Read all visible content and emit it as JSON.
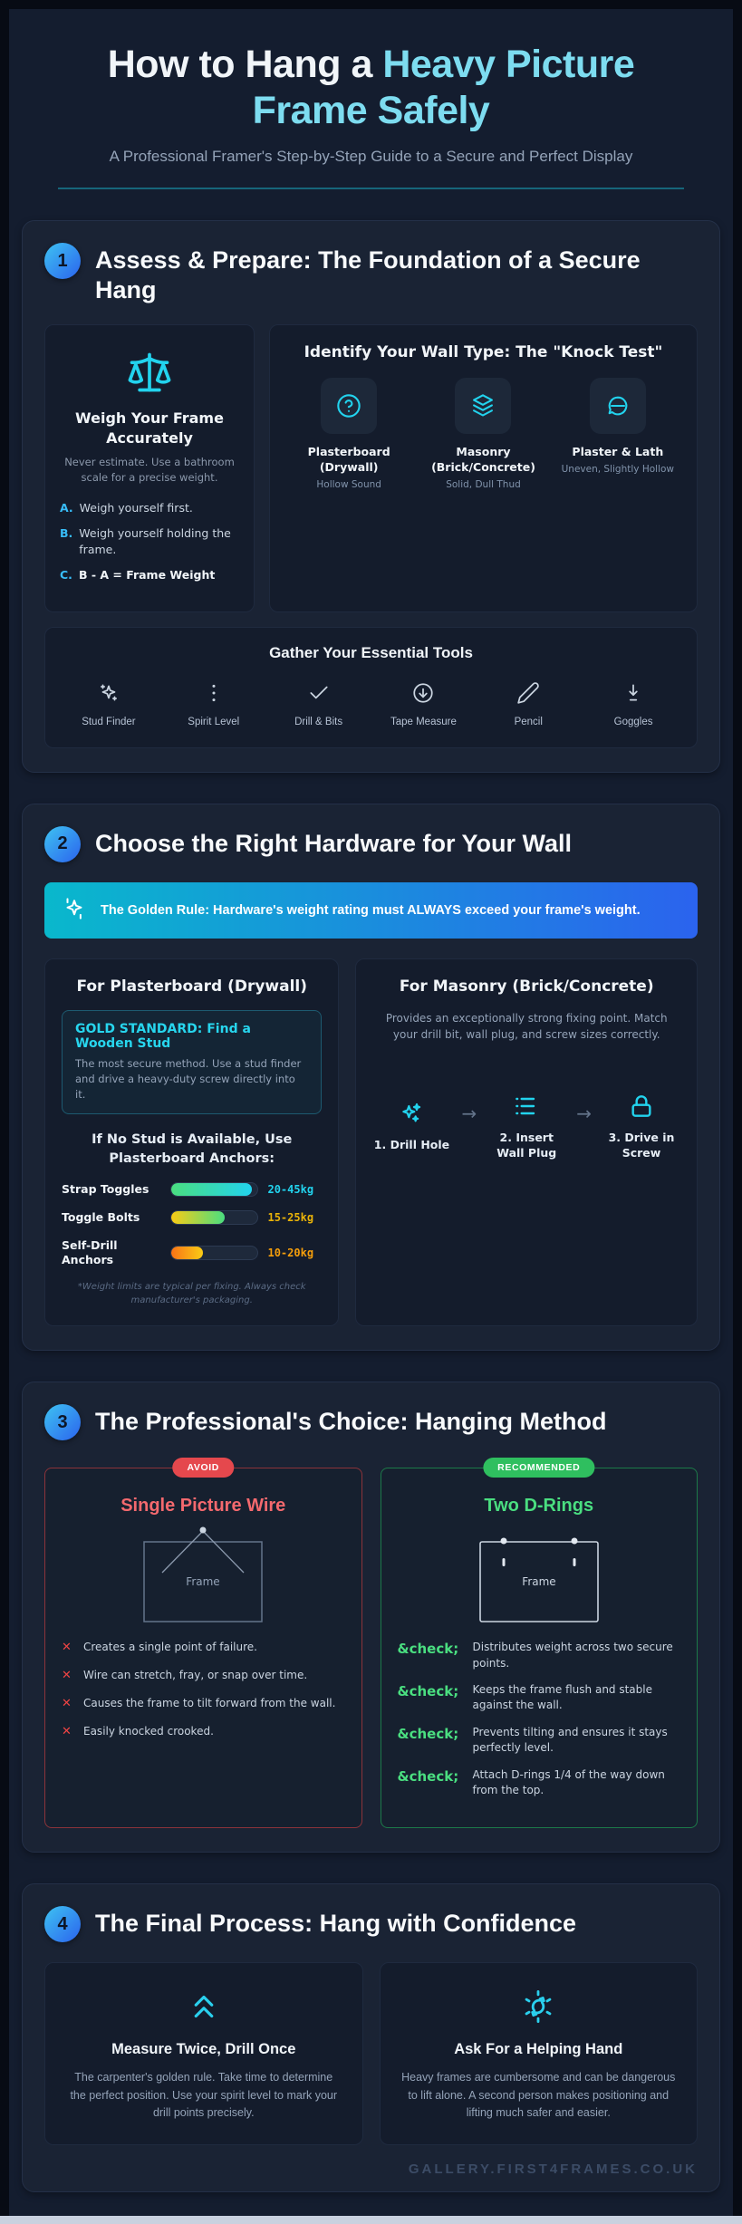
{
  "colors": {
    "accent_cyan": "#22d3ee",
    "accent_blue": "#2b63ee",
    "title_accent": "#7ddcf0",
    "banner_gradient_start": "#09b8cc",
    "banner_gradient_end": "#2b63ee",
    "avoid_red": "#e5484d",
    "recommended_green": "#2fbf5f",
    "bar_cyan": "#22d3ee",
    "bar_yellow": "#eab308",
    "bar_orange": "#f59e0b"
  },
  "header": {
    "title_white": "How to Hang a ",
    "title_accent": "Heavy Picture Frame Safely",
    "subtitle": "A Professional Framer's Step-by-Step Guide to a Secure and Perfect Display"
  },
  "s1": {
    "number": "1",
    "title": "Assess & Prepare: The Foundation of a Secure Hang",
    "weigh": {
      "title": "Weigh Your Frame Accurately",
      "desc": "Never estimate. Use a bathroom scale for a precise weight.",
      "steps": [
        {
          "letter": "A.",
          "text": "Weigh yourself first."
        },
        {
          "letter": "B.",
          "text": "Weigh yourself holding the frame."
        },
        {
          "letter": "C.",
          "text": "B - A = Frame Weight"
        }
      ]
    },
    "knock": {
      "title": "Identify Your Wall Type: The \"Knock Test\"",
      "types": [
        {
          "name": "Plasterboard (Drywall)",
          "sound": "Hollow Sound",
          "icon": "question-circle-icon"
        },
        {
          "name": "Masonry (Brick/Concrete)",
          "sound": "Solid, Dull Thud",
          "icon": "layers-icon"
        },
        {
          "name": "Plaster & Lath",
          "sound": "Uneven, Slightly Hollow",
          "icon": "speech-bubble-icon"
        }
      ]
    },
    "tools": {
      "title": "Gather Your Essential Tools",
      "items": [
        {
          "label": "Stud Finder",
          "icon": "sparkles-icon"
        },
        {
          "label": "Spirit Level",
          "icon": "dots-vertical-icon"
        },
        {
          "label": "Drill & Bits",
          "icon": "check-icon"
        },
        {
          "label": "Tape Measure",
          "icon": "arrow-down-circle-icon"
        },
        {
          "label": "Pencil",
          "icon": "pencil-icon"
        },
        {
          "label": "Goggles",
          "icon": "arrow-down-line-icon"
        }
      ]
    }
  },
  "s2": {
    "number": "2",
    "title": "Choose the Right Hardware for Your Wall",
    "golden_rule": "The Golden Rule: Hardware's weight rating must ALWAYS exceed your frame's weight.",
    "plasterboard": {
      "title": "For Plasterboard (Drywall)",
      "gold_title": "GOLD STANDARD: Find a Wooden Stud",
      "gold_desc": "The most secure method. Use a stud finder and drive a heavy-duty screw directly into it.",
      "anchors_heading": "If No Stud is Available, Use Plasterboard Anchors:",
      "anchors": [
        {
          "label": "Strap Toggles",
          "range": "20-45kg",
          "percent": 93
        },
        {
          "label": "Toggle Bolts",
          "range": "15-25kg",
          "percent": 62
        },
        {
          "label": "Self-Drill Anchors",
          "range": "10-20kg",
          "percent": 37
        }
      ],
      "footnote": "*Weight limits are typical per fixing. Always check manufacturer's packaging."
    },
    "masonry": {
      "title": "For Masonry (Brick/Concrete)",
      "desc": "Provides an exceptionally strong fixing point. Match your drill bit, wall plug, and screw sizes correctly.",
      "arrow": "→",
      "steps": [
        {
          "label": "1. Drill Hole",
          "icon": "sparkles-icon"
        },
        {
          "label": "2. Insert Wall Plug",
          "icon": "list-dashes-icon"
        },
        {
          "label": "3. Drive in Screw",
          "icon": "lock-icon"
        }
      ]
    }
  },
  "s3": {
    "number": "3",
    "title": "The Professional's Choice: Hanging Method",
    "avoid": {
      "badge": "AVOID",
      "title": "Single Picture Wire",
      "frame_label": "Frame",
      "mark": "✕",
      "points": [
        "Creates a single point of failure.",
        "Wire can stretch, fray, or snap over time.",
        "Causes the frame to tilt forward from the wall.",
        "Easily knocked crooked."
      ]
    },
    "recommended": {
      "badge": "RECOMMENDED",
      "title": "Two D-Rings",
      "frame_label": "Frame",
      "mark": "&check;",
      "points": [
        "Distributes weight across two secure points.",
        "Keeps the frame flush and stable against the wall.",
        "Prevents tilting and ensures it stays perfectly level.",
        "Attach D-rings 1/4 of the way down from the top."
      ]
    }
  },
  "s4": {
    "number": "4",
    "title": "The Final Process: Hang with Confidence",
    "cards": [
      {
        "title": "Measure Twice, Drill Once",
        "icon": "chevrons-up-icon",
        "desc": "The carpenter's golden rule. Take time to determine the perfect position. Use your spirit level to mark your drill points precisely."
      },
      {
        "title": "Ask For a Helping Hand",
        "icon": "sun-arrows-icon",
        "desc": "Heavy frames are cumbersome and can be dangerous to lift alone. A second person makes positioning and lifting much safer and easier."
      }
    ]
  },
  "footer": {
    "watermark": "GALLERY.FIRST4FRAMES.CO.UK"
  }
}
